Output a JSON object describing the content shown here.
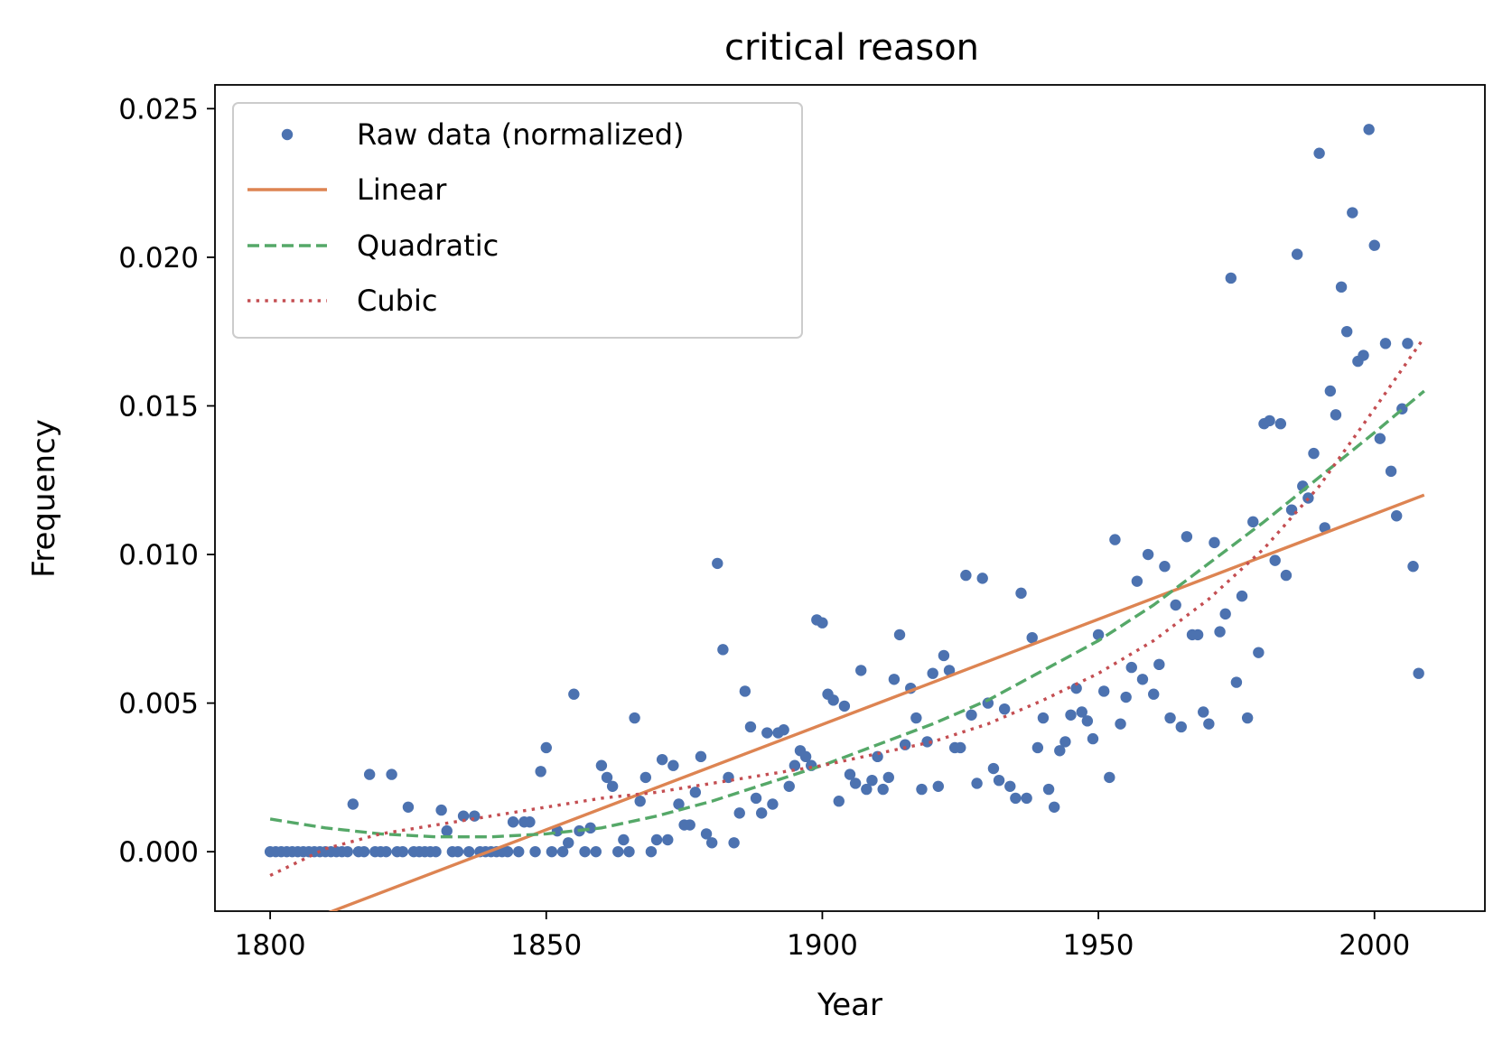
{
  "chart_data": {
    "type": "scatter",
    "title": "critical reason",
    "xlabel": "Year",
    "ylabel": "Frequency",
    "xlim": [
      1790,
      2020
    ],
    "ylim": [
      -0.002,
      0.0258
    ],
    "xticks": [
      1800,
      1850,
      1900,
      1950,
      2000
    ],
    "xtick_labels": [
      "1800",
      "1850",
      "1900",
      "1950",
      "2000"
    ],
    "yticks": [
      0.0,
      0.005,
      0.01,
      0.015,
      0.02,
      0.025
    ],
    "ytick_labels": [
      "0.000",
      "0.005",
      "0.010",
      "0.015",
      "0.020",
      "0.025"
    ],
    "grid": false,
    "legend_position": "upper-left",
    "colors": {
      "raw": "#4c72b0",
      "linear": "#dd8452",
      "quadratic": "#55a868",
      "cubic": "#c44e52"
    },
    "series": [
      {
        "name": "Raw data (normalized)",
        "kind": "points",
        "x": [
          1800,
          1801,
          1802,
          1803,
          1804,
          1805,
          1806,
          1807,
          1808,
          1809,
          1810,
          1811,
          1812,
          1813,
          1814,
          1815,
          1816,
          1817,
          1818,
          1819,
          1820,
          1821,
          1822,
          1823,
          1824,
          1825,
          1826,
          1827,
          1828,
          1829,
          1830,
          1831,
          1832,
          1833,
          1834,
          1835,
          1836,
          1837,
          1838,
          1839,
          1840,
          1841,
          1842,
          1843,
          1844,
          1845,
          1846,
          1847,
          1848,
          1849,
          1850,
          1851,
          1852,
          1853,
          1854,
          1855,
          1856,
          1857,
          1858,
          1859,
          1860,
          1861,
          1862,
          1863,
          1864,
          1865,
          1866,
          1867,
          1868,
          1869,
          1870,
          1871,
          1872,
          1873,
          1874,
          1875,
          1876,
          1877,
          1878,
          1879,
          1880,
          1881,
          1882,
          1883,
          1884,
          1885,
          1886,
          1887,
          1888,
          1889,
          1890,
          1891,
          1892,
          1893,
          1894,
          1895,
          1896,
          1897,
          1898,
          1899,
          1900,
          1901,
          1902,
          1903,
          1904,
          1905,
          1906,
          1907,
          1908,
          1909,
          1910,
          1911,
          1912,
          1913,
          1914,
          1915,
          1916,
          1917,
          1918,
          1919,
          1920,
          1921,
          1922,
          1923,
          1924,
          1925,
          1926,
          1927,
          1928,
          1929,
          1930,
          1931,
          1932,
          1933,
          1934,
          1935,
          1936,
          1937,
          1938,
          1939,
          1940,
          1941,
          1942,
          1943,
          1944,
          1945,
          1946,
          1947,
          1948,
          1949,
          1950,
          1951,
          1952,
          1953,
          1954,
          1955,
          1956,
          1957,
          1958,
          1959,
          1960,
          1961,
          1962,
          1963,
          1964,
          1965,
          1966,
          1967,
          1968,
          1969,
          1970,
          1971,
          1972,
          1973,
          1974,
          1975,
          1976,
          1977,
          1978,
          1979,
          1980,
          1981,
          1982,
          1983,
          1984,
          1985,
          1986,
          1987,
          1988,
          1989,
          1990,
          1991,
          1992,
          1993,
          1994,
          1995,
          1996,
          1997,
          1998,
          1999,
          2000,
          2001,
          2002,
          2003,
          2004,
          2005,
          2006,
          2007,
          2008
        ],
        "y": [
          0,
          0,
          0,
          0,
          0,
          0,
          0,
          0,
          0,
          0,
          0,
          0,
          0,
          0,
          0,
          0.0016,
          0,
          0,
          0.0026,
          0,
          0,
          0,
          0.0026,
          0,
          0,
          0.0015,
          0,
          0,
          0,
          0,
          0,
          0.0014,
          0.0007,
          0,
          0,
          0.0012,
          0,
          0.0012,
          0,
          0,
          0,
          0,
          0,
          0,
          0.001,
          0,
          0.001,
          0.001,
          0,
          0.0027,
          0.0035,
          0,
          0.0007,
          0,
          0.0003,
          0.0053,
          0.0007,
          0,
          0.0008,
          0,
          0.0029,
          0.0025,
          0.0022,
          0,
          0.0004,
          0,
          0.0045,
          0.0017,
          0.0025,
          0,
          0.0004,
          0.0031,
          0.0004,
          0.0029,
          0.0016,
          0.0009,
          0.0009,
          0.002,
          0.0032,
          0.0006,
          0.0003,
          0.0097,
          0.0068,
          0.0025,
          0.0003,
          0.0013,
          0.0054,
          0.0042,
          0.0018,
          0.0013,
          0.004,
          0.0016,
          0.004,
          0.0041,
          0.0022,
          0.0029,
          0.0034,
          0.0032,
          0.0029,
          0.0078,
          0.0077,
          0.0053,
          0.0051,
          0.0017,
          0.0049,
          0.0026,
          0.0023,
          0.0061,
          0.0021,
          0.0024,
          0.0032,
          0.0021,
          0.0025,
          0.0058,
          0.0073,
          0.0036,
          0.0055,
          0.0045,
          0.0021,
          0.0037,
          0.006,
          0.0022,
          0.0066,
          0.0061,
          0.0035,
          0.0035,
          0.0093,
          0.0046,
          0.0023,
          0.0092,
          0.005,
          0.0028,
          0.0024,
          0.0048,
          0.0022,
          0.0018,
          0.0087,
          0.0018,
          0.0072,
          0.0035,
          0.0045,
          0.0021,
          0.0015,
          0.0034,
          0.0037,
          0.0046,
          0.0055,
          0.0047,
          0.0044,
          0.0038,
          0.0073,
          0.0054,
          0.0025,
          0.0105,
          0.0043,
          0.0052,
          0.0062,
          0.0091,
          0.0058,
          0.01,
          0.0053,
          0.0063,
          0.0096,
          0.0045,
          0.0083,
          0.0042,
          0.0106,
          0.0073,
          0.0073,
          0.0047,
          0.0043,
          0.0104,
          0.0074,
          0.008,
          0.0193,
          0.0057,
          0.0086,
          0.0045,
          0.0111,
          0.0067,
          0.0144,
          0.0145,
          0.0098,
          0.0144,
          0.0093,
          0.0115,
          0.0201,
          0.0123,
          0.0119,
          0.0134,
          0.0235,
          0.0109,
          0.0155,
          0.0147,
          0.019,
          0.0175,
          0.0215,
          0.0165,
          0.0167,
          0.0243,
          0.0204,
          0.0139,
          0.0171,
          0.0128,
          0.0113,
          0.0149,
          0.0171,
          0.0096,
          0.006
        ]
      },
      {
        "name": "Linear",
        "kind": "line",
        "x": [
          1800,
          2009
        ],
        "y": [
          -0.0028,
          0.012
        ]
      },
      {
        "name": "Quadratic",
        "kind": "line",
        "x": [
          1800,
          1810,
          1820,
          1830,
          1840,
          1850,
          1860,
          1870,
          1880,
          1890,
          1900,
          1910,
          1920,
          1930,
          1940,
          1950,
          1960,
          1970,
          1980,
          1990,
          2000,
          2009
        ],
        "y": [
          0.0011,
          0.0008,
          0.0006,
          0.0005,
          0.0005,
          0.0006,
          0.0008,
          0.0012,
          0.0017,
          0.0023,
          0.0029,
          0.0036,
          0.0043,
          0.0051,
          0.0061,
          0.0071,
          0.0083,
          0.0097,
          0.0111,
          0.0126,
          0.0141,
          0.0155
        ]
      },
      {
        "name": "Cubic",
        "kind": "line",
        "x": [
          1800,
          1810,
          1820,
          1830,
          1840,
          1850,
          1860,
          1870,
          1880,
          1890,
          1900,
          1910,
          1920,
          1930,
          1940,
          1950,
          1960,
          1970,
          1980,
          1990,
          2000,
          2009
        ],
        "y": [
          -0.0008,
          0.0001,
          0.0006,
          0.0009,
          0.0012,
          0.0015,
          0.0018,
          0.002,
          0.0023,
          0.0026,
          0.0029,
          0.0033,
          0.0037,
          0.0043,
          0.0051,
          0.006,
          0.0071,
          0.0085,
          0.0102,
          0.0123,
          0.0149,
          0.0173
        ]
      }
    ]
  }
}
